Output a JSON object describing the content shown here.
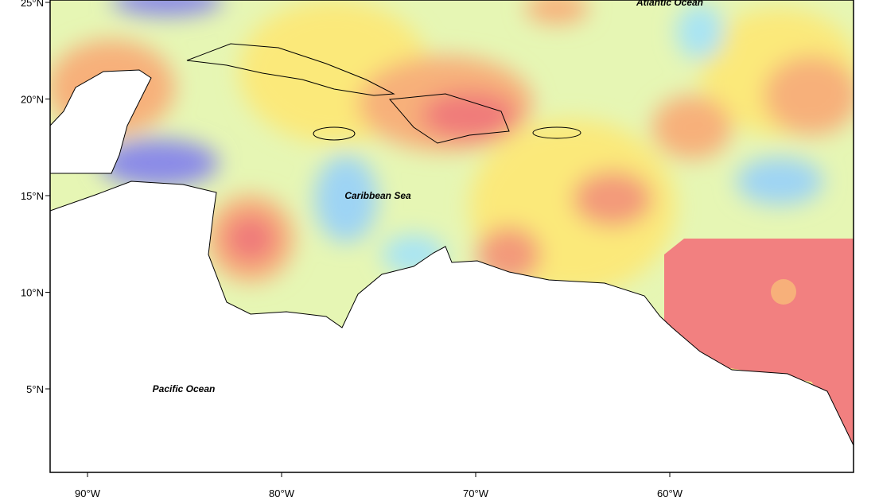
{
  "map": {
    "labels": {
      "atlantic": "Atlantic Ocean",
      "caribbean": "Caribbean Sea",
      "pacific": "Pacific Ocean"
    },
    "lat_ticks": [
      {
        "value": 25,
        "label": "25°N"
      },
      {
        "value": 20,
        "label": "20°N"
      },
      {
        "value": 15,
        "label": "15°N"
      },
      {
        "value": 10,
        "label": "10°N"
      },
      {
        "value": 5,
        "label": "5°N"
      }
    ],
    "lon_ticks": [
      {
        "value": -90,
        "label": "90°W"
      },
      {
        "value": -80,
        "label": "80°W"
      },
      {
        "value": -70,
        "label": "70°W"
      },
      {
        "value": -60,
        "label": "60°W"
      }
    ]
  }
}
